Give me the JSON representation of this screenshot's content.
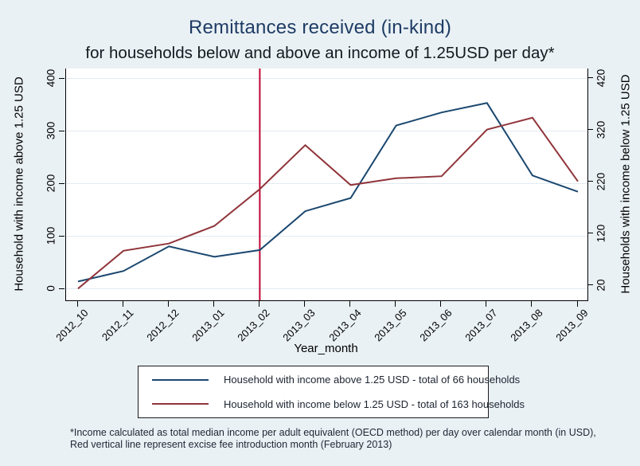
{
  "title": "Remittances received (in-kind)",
  "subtitle": "for households below and above an income of 1.25USD per day*",
  "colors": {
    "background": "#eaf1f5",
    "plot_background": "#ffffff",
    "gridline": "#e2ebf2",
    "axis": "#000000",
    "title": "#1e3c64",
    "series_above": "#1a476f",
    "series_below": "#90353b",
    "event_line": "#c10534"
  },
  "chart_data": {
    "type": "line",
    "title": "Remittances received (in-kind)",
    "subtitle": "for households below and above an income of 1.25USD per day*",
    "xlabel": "Year_month",
    "grid": true,
    "legend_position": "bottom",
    "categories": [
      "2012_10",
      "2012_11",
      "2012_12",
      "2013_01",
      "2013_02",
      "2013_03",
      "2013_04",
      "2013_05",
      "2013_06",
      "2013_07",
      "2013_08",
      "2013_09"
    ],
    "series": [
      {
        "name": "Household with income above 1.25 USD - total of 66 households",
        "axis": "left",
        "color": "#1a476f",
        "values": [
          13,
          33,
          80,
          60,
          73,
          147,
          172,
          310,
          335,
          353,
          215,
          184
        ]
      },
      {
        "name": "Household with income below 1.25 USD - total of 163 households",
        "axis": "right",
        "color": "#90353b",
        "values": [
          13,
          86,
          100,
          134,
          205,
          290,
          213,
          226,
          230,
          320,
          343,
          220
        ]
      }
    ],
    "left_axis": {
      "label": "Household with income above 1.25 USD",
      "min": 0,
      "max": 400,
      "ticks": [
        0,
        100,
        200,
        300,
        400
      ]
    },
    "right_axis": {
      "label": "Households with income below 1.25 USD",
      "min": 20,
      "max": 420,
      "ticks": [
        20,
        120,
        220,
        320,
        420
      ]
    },
    "vline": {
      "x_category": "2013_02",
      "color": "#c10534",
      "note": "excise fee introduction month (February 2013)"
    }
  },
  "legend": {
    "items": [
      {
        "label": "Household with income above 1.25 USD - total of 66 households",
        "color": "#1a476f"
      },
      {
        "label": "Household with income below 1.25 USD - total of 163 households",
        "color": "#90353b"
      }
    ]
  },
  "footnote": {
    "line1": "*Income calculated as total median income per adult equivalent (OECD method) per day over calendar month (in USD),",
    "line2": "Red vertical line represent excise fee introduction month (February 2013)"
  }
}
